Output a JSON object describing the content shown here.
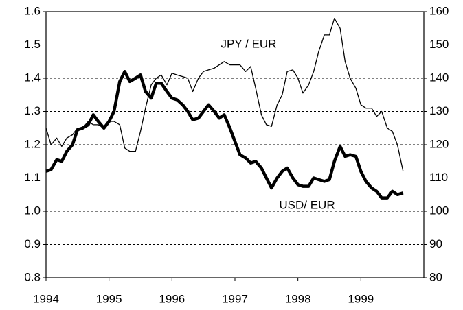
{
  "chart_data": {
    "type": "line",
    "annotations": [
      "JPY / EUR",
      "USD/ EUR"
    ],
    "x": [
      1994.0,
      1994.08,
      1994.17,
      1994.25,
      1994.33,
      1994.42,
      1994.5,
      1994.58,
      1994.67,
      1994.75,
      1994.83,
      1994.92,
      1995.0,
      1995.08,
      1995.17,
      1995.25,
      1995.33,
      1995.42,
      1995.5,
      1995.58,
      1995.67,
      1995.75,
      1995.83,
      1995.92,
      1996.0,
      1996.08,
      1996.17,
      1996.25,
      1996.33,
      1996.42,
      1996.5,
      1996.58,
      1996.67,
      1996.75,
      1996.83,
      1996.92,
      1997.0,
      1997.08,
      1997.17,
      1997.25,
      1997.33,
      1997.42,
      1997.5,
      1997.58,
      1997.67,
      1997.75,
      1997.83,
      1997.92,
      1998.0,
      1998.08,
      1998.17,
      1998.25,
      1998.33,
      1998.42,
      1998.5,
      1998.58,
      1998.67,
      1998.75,
      1998.83,
      1998.92,
      1999.0,
      1999.08,
      1999.17,
      1999.25,
      1999.33,
      1999.42,
      1999.5,
      1999.58,
      1999.67
    ],
    "series": [
      {
        "name": "USD/ EUR",
        "color": "#000000",
        "axis": "y",
        "values": [
          1.12,
          1.125,
          1.155,
          1.15,
          1.18,
          1.2,
          1.245,
          1.25,
          1.26,
          1.29,
          1.27,
          1.25,
          1.27,
          1.3,
          1.39,
          1.42,
          1.39,
          1.4,
          1.41,
          1.36,
          1.34,
          1.385,
          1.385,
          1.36,
          1.34,
          1.335,
          1.32,
          1.3,
          1.275,
          1.28,
          1.3,
          1.32,
          1.3,
          1.28,
          1.29,
          1.25,
          1.21,
          1.17,
          1.16,
          1.145,
          1.15,
          1.13,
          1.1,
          1.07,
          1.1,
          1.12,
          1.13,
          1.1,
          1.08,
          1.075,
          1.075,
          1.1,
          1.095,
          1.09,
          1.095,
          1.15,
          1.195,
          1.165,
          1.17,
          1.165,
          1.12,
          1.09,
          1.07,
          1.06,
          1.04,
          1.04,
          1.06,
          1.05,
          1.055
        ]
      },
      {
        "name": "JPY / EUR",
        "color": "#000000",
        "axis": "y2",
        "values": [
          125,
          120,
          122,
          119.5,
          122,
          123,
          125,
          125,
          127,
          126,
          126,
          125,
          127,
          127,
          126,
          119,
          118,
          118,
          124,
          131,
          138,
          140,
          141,
          138,
          141.5,
          141,
          140.5,
          140,
          136,
          140,
          142,
          142.5,
          143,
          144,
          145,
          144,
          144,
          144,
          142,
          143.5,
          137,
          129,
          126,
          125.5,
          132,
          135,
          142,
          142.5,
          140,
          135.5,
          138,
          142,
          148,
          153,
          153,
          158,
          155,
          145,
          140,
          137,
          132,
          131,
          131,
          128.5,
          130,
          125,
          124,
          120,
          112
        ]
      }
    ],
    "xlim": [
      1994,
      2000
    ],
    "xticks": [
      1994,
      1995,
      1996,
      1997,
      1998,
      1999
    ],
    "ylim": [
      0.8,
      1.6
    ],
    "yticks": [
      0.8,
      0.9,
      {
        "value": 1,
        "label": "1.0"
      },
      1.1,
      1.2,
      1.3,
      1.4,
      1.5,
      1.6
    ],
    "y2lim": [
      80,
      160
    ],
    "y2ticks": [
      80,
      90,
      100,
      110,
      120,
      130,
      140,
      150,
      160
    ],
    "grid": true
  }
}
